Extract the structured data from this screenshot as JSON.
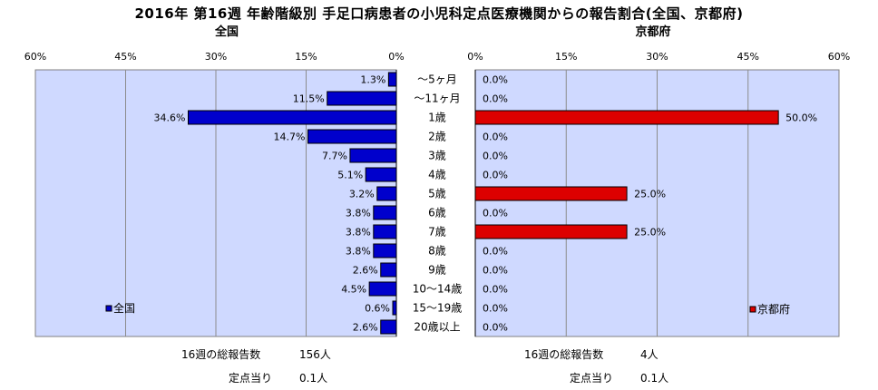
{
  "title": "2016年 第16週 年齢階級別 手足口病患者の小児科定点医療機関からの報告割合(全国、京都府)",
  "chart_data": [
    {
      "type": "bar",
      "orientation": "horizontal",
      "subtitle": "全国",
      "legend": "全国",
      "legend_position": "bottom-left",
      "color": "#0000cc",
      "xlim": [
        0,
        60
      ],
      "x_direction": "reversed",
      "ticks": [
        "60%",
        "45%",
        "30%",
        "15%",
        "0%"
      ],
      "grid": true,
      "categories": [
        "～5ヶ月",
        "～11ヶ月",
        "1歳",
        "2歳",
        "3歳",
        "4歳",
        "5歳",
        "6歳",
        "7歳",
        "8歳",
        "9歳",
        "10～14歳",
        "15～19歳",
        "20歳以上"
      ],
      "values": [
        1.3,
        11.5,
        34.6,
        14.7,
        7.7,
        5.1,
        3.2,
        3.8,
        3.8,
        3.8,
        2.6,
        4.5,
        0.6,
        2.6
      ],
      "labels": [
        "1.3%",
        "11.5%",
        "34.6%",
        "14.7%",
        "7.7%",
        "5.1%",
        "3.2%",
        "3.8%",
        "3.8%",
        "3.8%",
        "2.6%",
        "4.5%",
        "0.6%",
        "2.6%"
      ]
    },
    {
      "type": "bar",
      "orientation": "horizontal",
      "subtitle": "京都府",
      "legend": "京都府",
      "legend_position": "bottom-right",
      "color": "#dd0000",
      "xlim": [
        0,
        60
      ],
      "ticks": [
        "0%",
        "15%",
        "30%",
        "45%",
        "60%"
      ],
      "grid": true,
      "categories": [
        "～5ヶ月",
        "～11ヶ月",
        "1歳",
        "2歳",
        "3歳",
        "4歳",
        "5歳",
        "6歳",
        "7歳",
        "8歳",
        "9歳",
        "10～14歳",
        "15～19歳",
        "20歳以上"
      ],
      "values": [
        0,
        0,
        50,
        0,
        0,
        0,
        25,
        0,
        25,
        0,
        0,
        0,
        0,
        0
      ],
      "labels": [
        "0.0%",
        "0.0%",
        "50.0%",
        "0.0%",
        "0.0%",
        "0.0%",
        "25.0%",
        "0.0%",
        "25.0%",
        "0.0%",
        "0.0%",
        "0.0%",
        "0.0%",
        "0.0%"
      ]
    }
  ],
  "footer": {
    "left": {
      "total_label": "16週の総報告数",
      "total_value": "156人",
      "per_label": "定点当り",
      "per_value": "0.1人"
    },
    "right": {
      "total_label": "16週の総報告数",
      "total_value": "4人",
      "per_label": "定点当り",
      "per_value": "0.1人"
    }
  }
}
